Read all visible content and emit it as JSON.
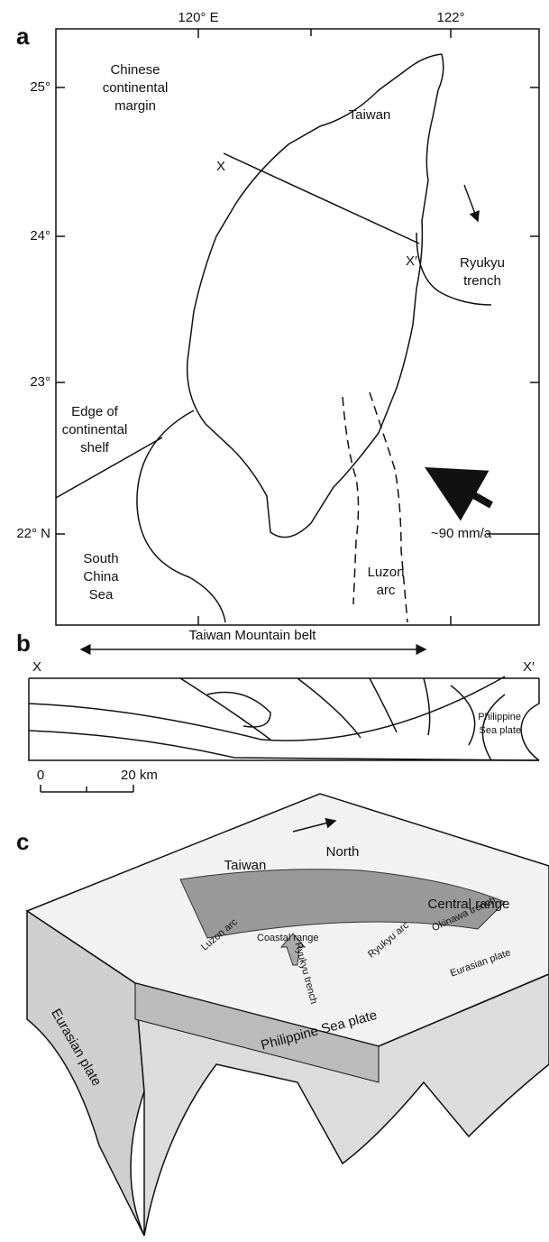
{
  "panel_a": {
    "label": "a",
    "lon_labels": [
      "120° E",
      "122°"
    ],
    "lat_labels": [
      "25°",
      "24°",
      "23°",
      "22° N"
    ],
    "chinese_margin": [
      "Chinese",
      "continental",
      "margin"
    ],
    "taiwan": "Taiwan",
    "section_start": "X",
    "section_end": "X′",
    "ryukyu_trench": [
      "Ryukyu",
      "trench"
    ],
    "shelf_edge": [
      "Edge of",
      "continental",
      "shelf"
    ],
    "south_china_sea": [
      "South",
      "China",
      "Sea"
    ],
    "rate": "~90 mm/a",
    "luzon_arc": [
      "Luzon",
      "arc"
    ]
  },
  "panel_b": {
    "label": "b",
    "belt": "Taiwan Mountain belt",
    "section_start": "X",
    "section_end": "X′",
    "plate": [
      "Philippine",
      "Sea plate"
    ],
    "scale_zero": "0",
    "scale_end": "20 km"
  },
  "panel_c": {
    "label": "c",
    "taiwan": "Taiwan",
    "north": "North",
    "central_range": "Central range",
    "okinawa_trench": "Okinawa trench",
    "ryukyu_arc": "Ryukyu arc",
    "luzon_arc": "Luzon arc",
    "coastal_range": "Coastal range",
    "ryukyu_trench": "Ryukyu trench",
    "eurasian_plate_right": "Eurasian plate",
    "eurasian_plate_left": "Eurasian plate",
    "philippine_plate": "Philippine Sea plate"
  }
}
